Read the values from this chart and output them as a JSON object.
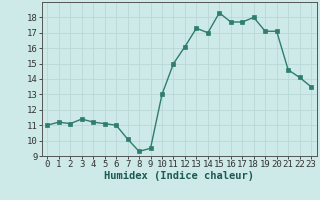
{
  "x": [
    0,
    1,
    2,
    3,
    4,
    5,
    6,
    7,
    8,
    9,
    10,
    11,
    12,
    13,
    14,
    15,
    16,
    17,
    18,
    19,
    20,
    21,
    22,
    23
  ],
  "y": [
    11,
    11.2,
    11.1,
    11.4,
    11.2,
    11.1,
    11.0,
    10.1,
    9.3,
    9.5,
    13.0,
    15.0,
    16.1,
    17.3,
    17.0,
    18.3,
    17.7,
    17.7,
    18.0,
    17.1,
    17.1,
    14.6,
    14.1,
    13.5
  ],
  "line_color": "#2e7d6e",
  "marker": "s",
  "markersize": 2.5,
  "linewidth": 1.0,
  "bg_color": "#ceeae8",
  "grid_color": "#b8d8d5",
  "xlabel": "Humidex (Indice chaleur)",
  "xlabel_fontsize": 7.5,
  "tick_fontsize": 6.5,
  "ylim": [
    9,
    19
  ],
  "xlim": [
    -0.5,
    23.5
  ],
  "yticks": [
    9,
    10,
    11,
    12,
    13,
    14,
    15,
    16,
    17,
    18
  ],
  "xticks": [
    0,
    1,
    2,
    3,
    4,
    5,
    6,
    7,
    8,
    9,
    10,
    11,
    12,
    13,
    14,
    15,
    16,
    17,
    18,
    19,
    20,
    21,
    22,
    23
  ]
}
